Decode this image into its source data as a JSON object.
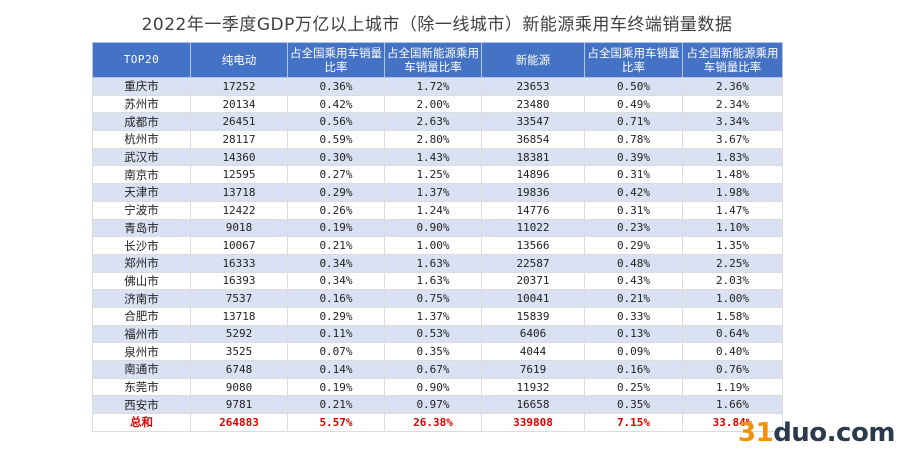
{
  "title": "2022年一季度GDP万亿以上城市（除一线城市）新能源乘用车终端销量数据",
  "headers": [
    "TOP20",
    "纯电动",
    "占全国乘用车销量比率",
    "占全国新能源乘用车销量比率",
    "新能源",
    "占全国乘用车销量比率",
    "占全国新能源乘用车销量比率"
  ],
  "rows": [
    [
      "重庆市",
      "17252",
      "0.36%",
      "1.72%",
      "23653",
      "0.50%",
      "2.36%"
    ],
    [
      "苏州市",
      "20134",
      "0.42%",
      "2.00%",
      "23480",
      "0.49%",
      "2.34%"
    ],
    [
      "成都市",
      "26451",
      "0.56%",
      "2.63%",
      "33547",
      "0.71%",
      "3.34%"
    ],
    [
      "杭州市",
      "28117",
      "0.59%",
      "2.80%",
      "36854",
      "0.78%",
      "3.67%"
    ],
    [
      "武汉市",
      "14360",
      "0.30%",
      "1.43%",
      "18381",
      "0.39%",
      "1.83%"
    ],
    [
      "南京市",
      "12595",
      "0.27%",
      "1.25%",
      "14896",
      "0.31%",
      "1.48%"
    ],
    [
      "天津市",
      "13718",
      "0.29%",
      "1.37%",
      "19836",
      "0.42%",
      "1.98%"
    ],
    [
      "宁波市",
      "12422",
      "0.26%",
      "1.24%",
      "14776",
      "0.31%",
      "1.47%"
    ],
    [
      "青岛市",
      "9018",
      "0.19%",
      "0.90%",
      "11022",
      "0.23%",
      "1.10%"
    ],
    [
      "长沙市",
      "10067",
      "0.21%",
      "1.00%",
      "13566",
      "0.29%",
      "1.35%"
    ],
    [
      "郑州市",
      "16333",
      "0.34%",
      "1.63%",
      "22587",
      "0.48%",
      "2.25%"
    ],
    [
      "佛山市",
      "16393",
      "0.34%",
      "1.63%",
      "20371",
      "0.43%",
      "2.03%"
    ],
    [
      "济南市",
      "7537",
      "0.16%",
      "0.75%",
      "10041",
      "0.21%",
      "1.00%"
    ],
    [
      "合肥市",
      "13718",
      "0.29%",
      "1.37%",
      "15839",
      "0.33%",
      "1.58%"
    ],
    [
      "福州市",
      "5292",
      "0.11%",
      "0.53%",
      "6406",
      "0.13%",
      "0.64%"
    ],
    [
      "泉州市",
      "3525",
      "0.07%",
      "0.35%",
      "4044",
      "0.09%",
      "0.40%"
    ],
    [
      "南通市",
      "6748",
      "0.14%",
      "0.67%",
      "7619",
      "0.16%",
      "0.76%"
    ],
    [
      "东莞市",
      "9080",
      "0.19%",
      "0.90%",
      "11932",
      "0.25%",
      "1.19%"
    ],
    [
      "西安市",
      "9781",
      "0.21%",
      "0.97%",
      "16658",
      "0.35%",
      "1.66%"
    ]
  ],
  "total": [
    "总和",
    "264883",
    "5.57%",
    "26.38%",
    "339808",
    "7.15%",
    "33.84%"
  ],
  "watermark": {
    "accent": "31",
    "rest": "duo.com"
  },
  "colors": {
    "header_bg": "#4472c4",
    "band": "#d9e1f2",
    "total_text": "#e00000",
    "watermark_accent": "#f2920c",
    "watermark_text": "#2c3a4e"
  }
}
